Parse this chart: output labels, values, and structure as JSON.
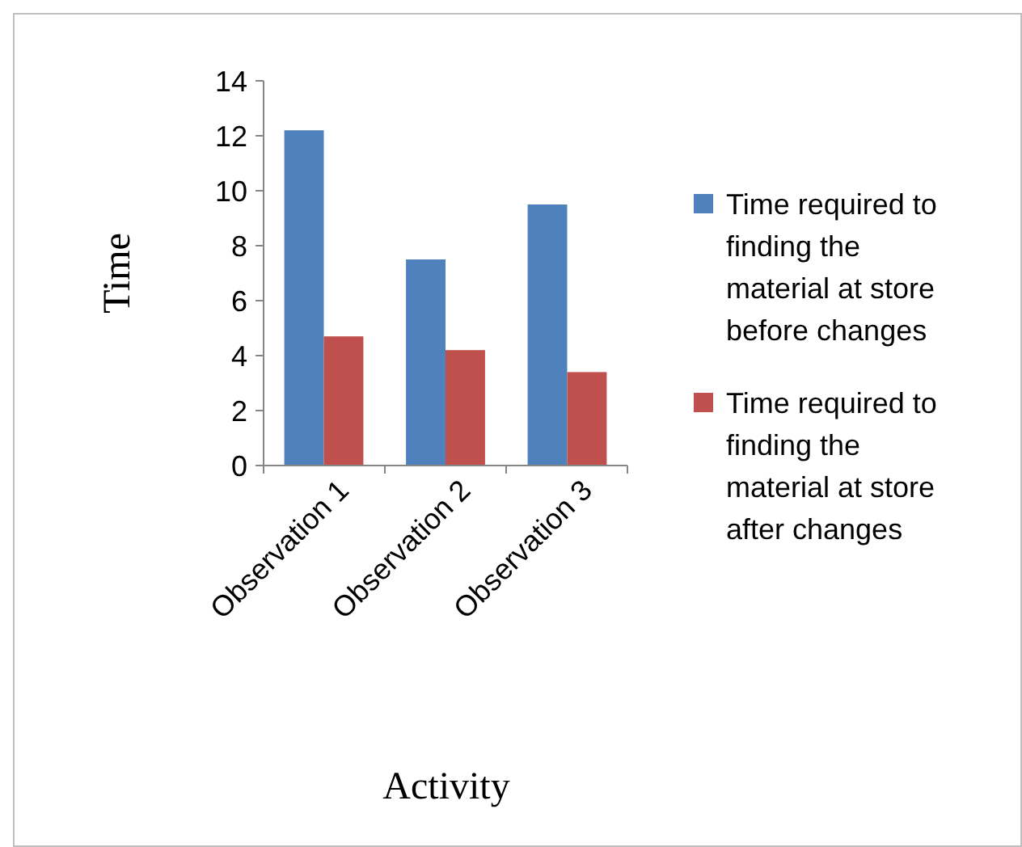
{
  "chart_data": {
    "type": "bar",
    "xlabel": "Activity",
    "ylabel": "Time",
    "categories": [
      "Observation 1",
      "Observation 2",
      "Observation 3"
    ],
    "series": [
      {
        "name": "Time required to finding  the material at store  before changes",
        "color": "#4f81bd",
        "values": [
          12.2,
          7.5,
          9.5
        ]
      },
      {
        "name": "Time required to finding  the material at store  after changes",
        "color": "#c0504d",
        "values": [
          4.7,
          4.2,
          3.4
        ]
      }
    ],
    "ylim": [
      0,
      14
    ],
    "yticks": [
      0,
      2,
      4,
      6,
      8,
      10,
      12,
      14
    ],
    "grid": false,
    "legend": "right"
  }
}
